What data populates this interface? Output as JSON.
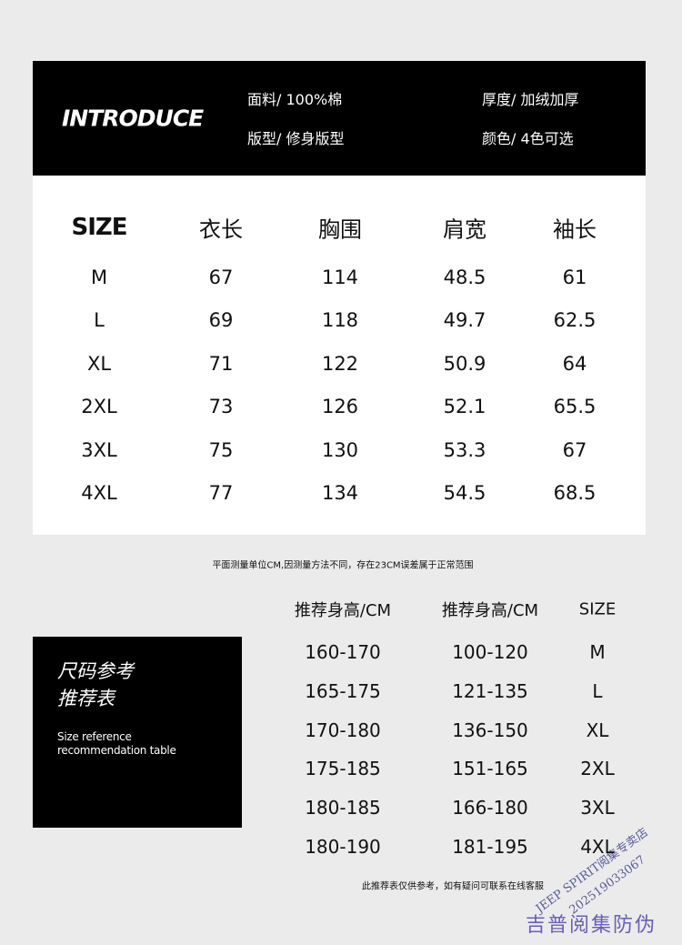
{
  "header": {
    "title": "INTRODUCE",
    "specs": [
      "面料/ 100%棉",
      "版型/ 修身版型",
      "厚度/ 加绒加厚",
      "颜色/ 4色可选"
    ]
  },
  "size_table": {
    "headers": [
      "SIZE",
      "衣长",
      "胸围",
      "肩宽",
      "袖长"
    ],
    "rows": [
      [
        "M",
        "67",
        "114",
        "48.5",
        "61"
      ],
      [
        "L",
        "69",
        "118",
        "49.7",
        "62.5"
      ],
      [
        "XL",
        "71",
        "122",
        "50.9",
        "64"
      ],
      [
        "2XL",
        "73",
        "126",
        "52.1",
        "65.5"
      ],
      [
        "3XL",
        "75",
        "130",
        "53.3",
        "67"
      ],
      [
        "4XL",
        "77",
        "134",
        "54.5",
        "68.5"
      ]
    ]
  },
  "measure_note": "平面测量单位CM,因测量方法不同，存在23CM误差属于正常范围",
  "recommend": {
    "title_lines": [
      "尺码参考",
      "推荐表"
    ],
    "subtitle_lines": [
      "Size reference",
      "recommendation table"
    ],
    "headers": [
      "推荐身高/CM",
      "推荐身高/CM",
      "SIZE"
    ],
    "rows": [
      [
        "160-170",
        "100-120",
        "M"
      ],
      [
        "165-175",
        "121-135",
        "L"
      ],
      [
        "170-180",
        "136-150",
        "XL"
      ],
      [
        "175-185",
        "151-165",
        "2XL"
      ],
      [
        "180-185",
        "166-180",
        "3XL"
      ],
      [
        "180-190",
        "181-195",
        "4XL"
      ]
    ]
  },
  "footer_note": "此推荐表仅供参考，如有疑问可联系在线客服",
  "watermark": {
    "brand": "吉普阅集防伪",
    "shop": "JEEP SPIRIT阅集专卖店",
    "code": "2025190330​67"
  }
}
